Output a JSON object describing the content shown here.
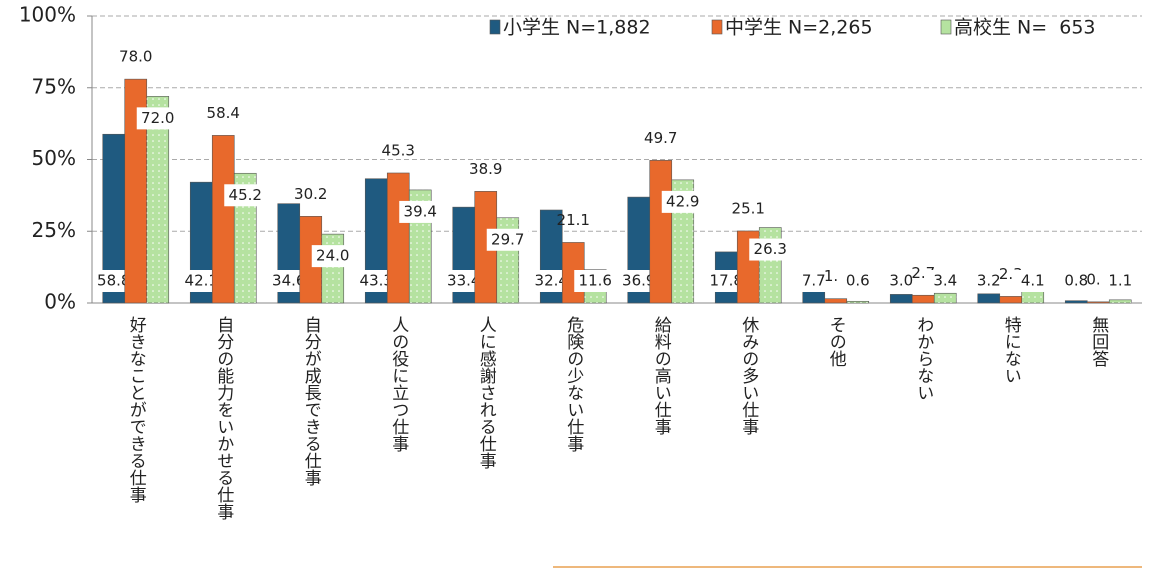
{
  "chart_data": {
    "type": "bar",
    "categories": [
      "好きなことができる仕事",
      "自分の能力をいかせる仕事",
      "自分が成長できる仕事",
      "人の役に立つ仕事",
      "人に感謝される仕事",
      "危険の少ない仕事",
      "給料の高い仕事",
      "休みの多い仕事",
      "その他",
      "わからない",
      "特にない",
      "無回答"
    ],
    "series": [
      {
        "name": "小学生 N=1,882",
        "color": "#1f5a80",
        "values": [
          58.8,
          42.1,
          34.6,
          43.3,
          33.4,
          32.4,
          36.9,
          17.8,
          7.7,
          3.0,
          3.2,
          0.8
        ],
        "value_labels": [
          "58.8",
          "42.1",
          "34.6",
          "43.3",
          "33.4",
          "32.4",
          "36.9",
          "17.8",
          "7.7",
          "3.0",
          "3.2",
          "0.8"
        ]
      },
      {
        "name": "中学生 N=2,265",
        "color": "#e8692c",
        "values": [
          78.0,
          58.4,
          30.2,
          45.3,
          38.9,
          21.1,
          49.7,
          25.1,
          1.5,
          2.7,
          2.3,
          0.4
        ],
        "value_labels": [
          "78.0",
          "58.4",
          "30.2",
          "45.3",
          "38.9",
          "21.1",
          "49.7",
          "25.1",
          "1.5",
          "2.7",
          "2.3",
          "0.4"
        ]
      },
      {
        "name": "高校生 N=  653",
        "color": "#b5e2a0",
        "values": [
          72.0,
          45.2,
          24.0,
          39.4,
          29.7,
          11.6,
          42.9,
          26.3,
          0.6,
          3.4,
          4.1,
          1.1
        ],
        "value_labels": [
          "72.0",
          "45.2",
          "24.0",
          "39.4",
          "29.7",
          "11.6",
          "42.9",
          "26.3",
          "0.6",
          "3.4",
          "4.1",
          "1.1"
        ]
      }
    ],
    "ylim": [
      0,
      100
    ],
    "yticks": [
      {
        "value": 0,
        "label": "0%"
      },
      {
        "value": 25,
        "label": "25%"
      },
      {
        "value": 50,
        "label": "50%"
      },
      {
        "value": 75,
        "label": "75%"
      },
      {
        "value": 100,
        "label": "100%"
      }
    ],
    "grid": true
  }
}
